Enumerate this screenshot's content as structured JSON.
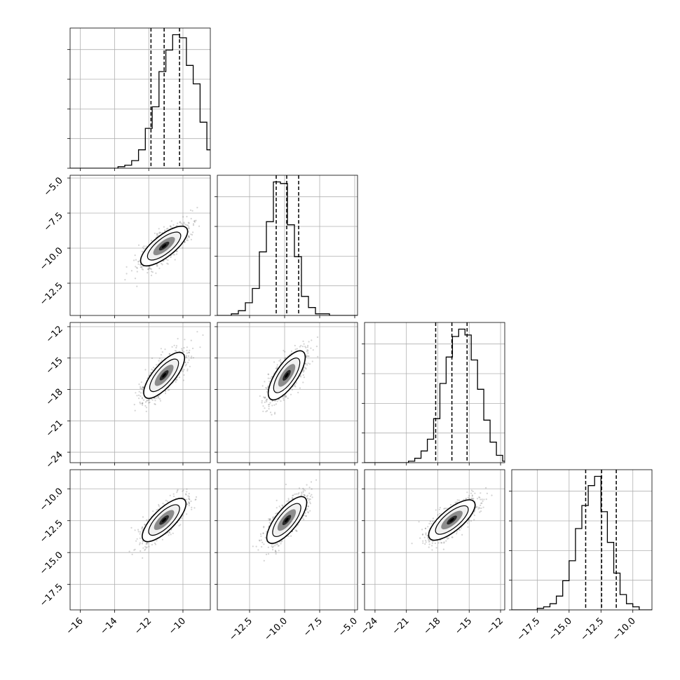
{
  "chart_data": {
    "type": "corner",
    "title": "",
    "grid": true,
    "variables": [
      {
        "range": [
          -16.6,
          -8.4
        ],
        "ticks": [
          {
            "v": -16,
            "label": "−16"
          },
          {
            "v": -14,
            "label": "−14"
          },
          {
            "v": -12,
            "label": "−12"
          },
          {
            "v": -10,
            "label": "−10"
          }
        ],
        "quantiles": [
          -11.87,
          -11.1,
          -10.2
        ],
        "hist_x_start": -16.6,
        "hist_bin_width": 0.4,
        "hist_counts": [
          0,
          0,
          0,
          0,
          0,
          0,
          0,
          1,
          2,
          5,
          12,
          26,
          40,
          63,
          77,
          87,
          85,
          67,
          55,
          30,
          12,
          5,
          1,
          0
        ]
      },
      {
        "range": [
          -14.8,
          -4.8
        ],
        "ticks": [
          {
            "v": -12.5,
            "label": "−12.5"
          },
          {
            "v": -10.0,
            "label": "−10.0"
          },
          {
            "v": -7.5,
            "label": "−7.5"
          },
          {
            "v": -5.0,
            "label": "−5.0"
          }
        ],
        "quantiles": [
          -10.6,
          -9.85,
          -9.0
        ],
        "hist_x_start": -14.8,
        "hist_bin_width": 0.5,
        "hist_counts": [
          0,
          0,
          1,
          3,
          8,
          17,
          40,
          59,
          84,
          83,
          57,
          37,
          12,
          5,
          1,
          1,
          0,
          0,
          0,
          0
        ]
      },
      {
        "range": [
          -25.0,
          -11.6
        ],
        "ticks": [
          {
            "v": -24,
            "label": "−24"
          },
          {
            "v": -21,
            "label": "−21"
          },
          {
            "v": -18,
            "label": "−18"
          },
          {
            "v": -15,
            "label": "−15"
          },
          {
            "v": -12,
            "label": "−12"
          }
        ],
        "quantiles": [
          -18.2,
          -16.65,
          -15.2
        ],
        "hist_x_start": -25.0,
        "hist_bin_width": 0.6,
        "hist_counts": [
          0,
          0,
          0,
          0,
          0,
          0,
          0,
          1,
          3,
          8,
          16,
          30,
          54,
          72,
          86,
          91,
          87,
          70,
          50,
          29,
          14,
          5,
          1,
          1
        ]
      },
      {
        "range": [
          -19.5,
          -8.5
        ],
        "ticks": [
          {
            "v": -17.5,
            "label": "−17.5"
          },
          {
            "v": -15.0,
            "label": "−15.0"
          },
          {
            "v": -12.5,
            "label": "−12.5"
          },
          {
            "v": -10.0,
            "label": "−10.0"
          }
        ],
        "quantiles": [
          -13.7,
          -12.45,
          -11.3
        ],
        "hist_x_start": -19.5,
        "hist_bin_width": 0.5,
        "hist_counts": [
          0,
          0,
          0,
          0,
          1,
          2,
          4,
          9,
          19,
          32,
          53,
          68,
          81,
          87,
          64,
          44,
          24,
          10,
          4,
          2,
          0,
          0
        ]
      }
    ],
    "pairs": [
      {
        "row": 1,
        "col": 0,
        "center": [
          -11.1,
          -9.85
        ],
        "slope": 0.97
      },
      {
        "row": 2,
        "col": 0,
        "center": [
          -11.1,
          -16.65
        ],
        "slope": 1.92
      },
      {
        "row": 2,
        "col": 1,
        "center": [
          -9.85,
          -16.65
        ],
        "slope": 1.97
      },
      {
        "row": 3,
        "col": 0,
        "center": [
          -11.1,
          -12.45
        ],
        "slope": 1.32
      },
      {
        "row": 3,
        "col": 1,
        "center": [
          -9.85,
          -12.45
        ],
        "slope": 1.36
      },
      {
        "row": 3,
        "col": 2,
        "center": [
          -16.65,
          -12.45
        ],
        "slope": 0.68
      }
    ]
  }
}
